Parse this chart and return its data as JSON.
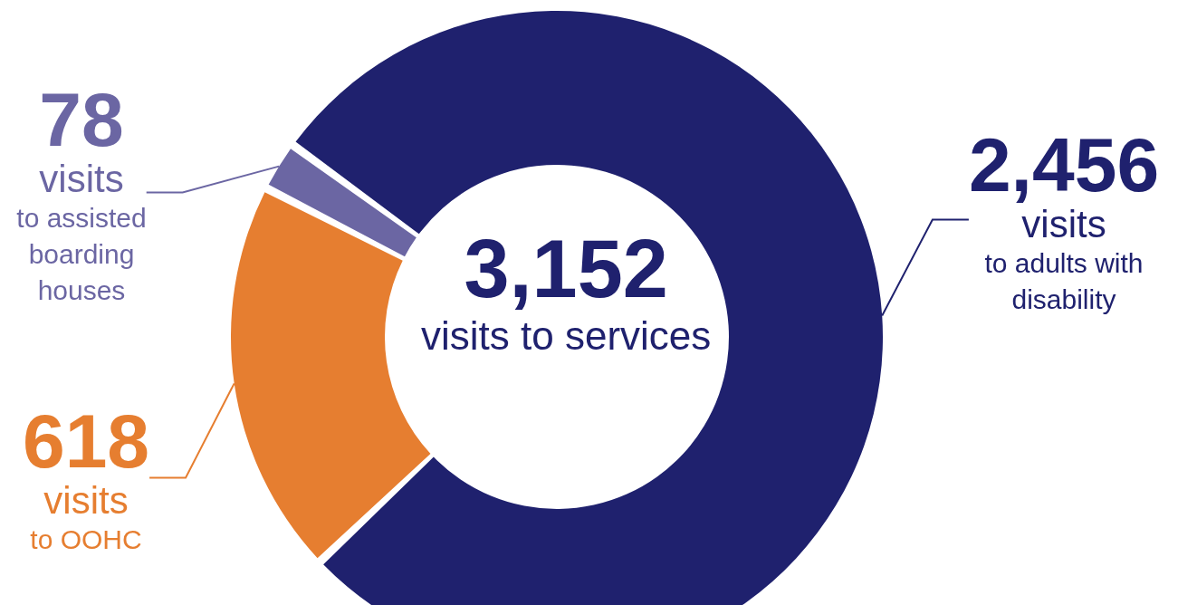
{
  "chart_data": {
    "type": "donut",
    "title": "3,152",
    "subtitle": "visits to services",
    "categories": [
      "visits to adults with disability",
      "visits to OOHC",
      "visits to assisted boarding houses"
    ],
    "values": [
      2456,
      618,
      78
    ],
    "value_labels": [
      "2,456",
      "618",
      "78"
    ],
    "colors": [
      "#1f216e",
      "#e67e30",
      "#6b66a3"
    ],
    "legend": false
  }
}
